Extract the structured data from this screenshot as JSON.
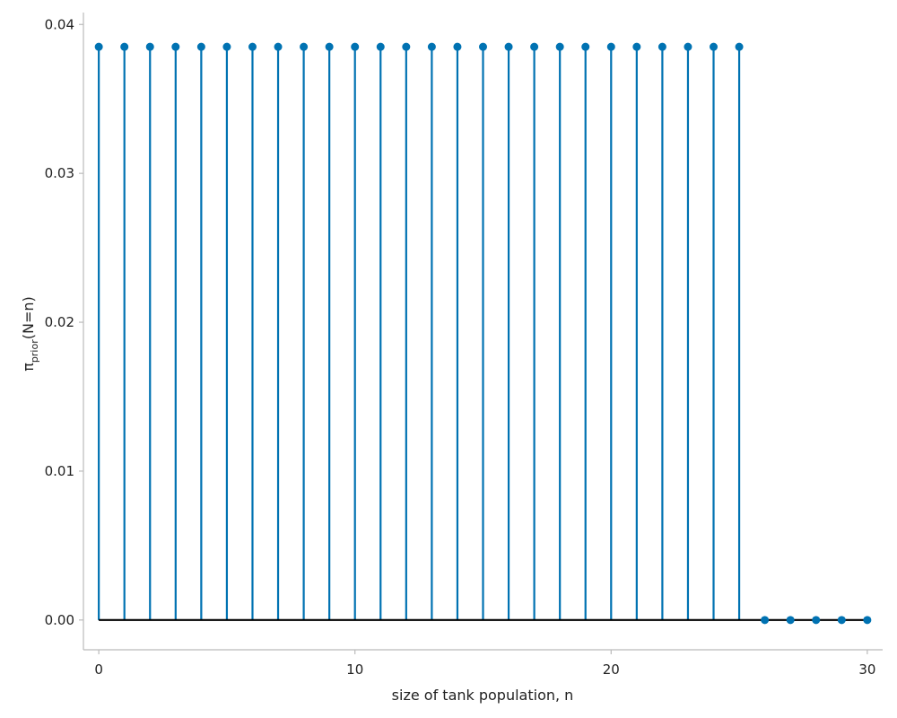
{
  "chart_data": {
    "type": "stem",
    "title": "",
    "xlabel": "size of tank population, n",
    "ylabel": {
      "main": "π",
      "subscript": "prior",
      "suffix": "(N=n)"
    },
    "xlim": [
      -0.6,
      30.6
    ],
    "ylim": [
      -0.002,
      0.0408
    ],
    "xticks": [
      0,
      10,
      20,
      30
    ],
    "xtick_labels": [
      "0",
      "10",
      "20",
      "30"
    ],
    "yticks": [
      0.0,
      0.01,
      0.02,
      0.03,
      0.04
    ],
    "ytick_labels": [
      "0.00",
      "0.01",
      "0.02",
      "0.03",
      "0.04"
    ],
    "grid": false,
    "colors": {
      "stem": "#0072b2",
      "baseline": "#000000",
      "axis": "#bbbbbb"
    },
    "x": [
      0,
      1,
      2,
      3,
      4,
      5,
      6,
      7,
      8,
      9,
      10,
      11,
      12,
      13,
      14,
      15,
      16,
      17,
      18,
      19,
      20,
      21,
      22,
      23,
      24,
      25,
      26,
      27,
      28,
      29,
      30
    ],
    "values": [
      0.0385,
      0.0385,
      0.0385,
      0.0385,
      0.0385,
      0.0385,
      0.0385,
      0.0385,
      0.0385,
      0.0385,
      0.0385,
      0.0385,
      0.0385,
      0.0385,
      0.0385,
      0.0385,
      0.0385,
      0.0385,
      0.0385,
      0.0385,
      0.0385,
      0.0385,
      0.0385,
      0.0385,
      0.0385,
      0.0385,
      0,
      0,
      0,
      0,
      0
    ]
  }
}
